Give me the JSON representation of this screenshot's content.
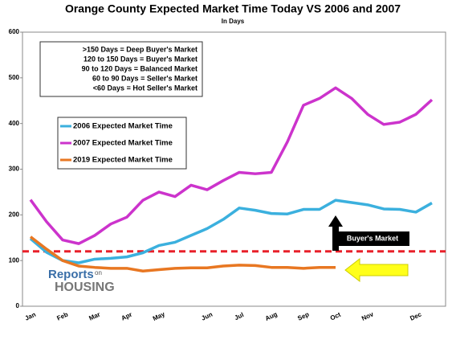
{
  "chart_data": {
    "type": "line",
    "title": "Orange County Expected Market Time Today VS 2006 and 2007",
    "subtitle": "In Days",
    "categories": [
      "Jan",
      null,
      "Feb",
      null,
      "Mar",
      null,
      "Apr",
      null,
      "May",
      null,
      null,
      "Jun",
      null,
      "Jul",
      null,
      "Aug",
      null,
      "Sep",
      null,
      "Oct",
      null,
      "Nov",
      null,
      null,
      "Dec",
      null
    ],
    "series": [
      {
        "name": "2006 Expected Market Time",
        "color": "#3bb0de",
        "values": [
          148,
          118,
          100,
          95,
          103,
          105,
          108,
          117,
          133,
          140,
          155,
          170,
          190,
          215,
          210,
          203,
          202,
          212,
          212,
          232,
          227,
          222,
          213,
          212,
          206,
          226
        ]
      },
      {
        "name": "2007 Expected Market Time",
        "color": "#cc33cc",
        "values": [
          233,
          185,
          145,
          137,
          155,
          180,
          195,
          232,
          250,
          240,
          265,
          255,
          275,
          293,
          290,
          293,
          360,
          440,
          455,
          478,
          455,
          420,
          398,
          403,
          420,
          452
        ]
      },
      {
        "name": "2019 Expected Market Time",
        "color": "#e87722",
        "values": [
          152,
          125,
          100,
          88,
          85,
          83,
          83,
          77,
          80,
          83,
          84,
          84,
          88,
          90,
          89,
          85,
          85,
          83,
          85,
          85,
          null,
          null,
          null,
          null,
          null,
          null
        ]
      }
    ],
    "ylim": [
      0,
      600
    ],
    "yticks": [
      0,
      100,
      200,
      300,
      400,
      500,
      600
    ],
    "grid": false,
    "legend": "left",
    "key": [
      ">150 Days = Deep Buyer's Market",
      "120 to 150 Days = Buyer's Market",
      "90 to 120 Days = Balanced Market",
      "60 to 90 Days = Seller's Market",
      "<60 Days = Hot Seller's Market"
    ],
    "reference_line": {
      "value": 120,
      "color": "#e8202a"
    },
    "annotation": "Buyer's Market",
    "logo": [
      "Reports",
      "on",
      "HOUSING"
    ]
  }
}
